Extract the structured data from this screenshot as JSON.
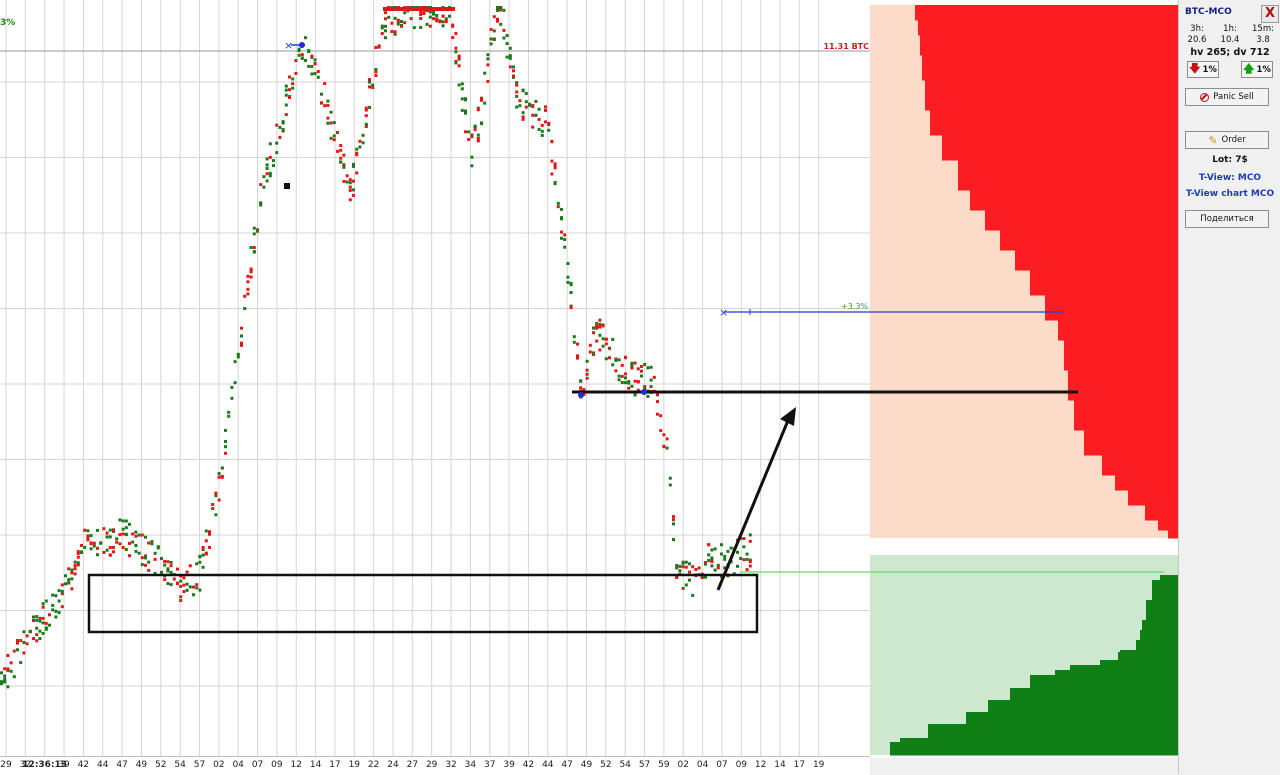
{
  "chart": {
    "corner_label": "3%",
    "price_line_label": "11.31 BTC",
    "target_label": "+3.3%",
    "colors": {
      "buy": "#1a7a1a",
      "sell": "#e01818",
      "grid": "#d6d6d6",
      "target_line": "#1f3fd0",
      "support_line": "#5ee05e",
      "marker": "#2a2ad0"
    },
    "time_ticks": [
      "29",
      "32",
      "12:36:13",
      "39",
      "42",
      "44",
      "47",
      "49",
      "52",
      "54",
      "57",
      "02",
      "04",
      "07",
      "09",
      "12",
      "14",
      "17",
      "19",
      "22",
      "24",
      "27",
      "29",
      "32",
      "34",
      "37",
      "39",
      "42",
      "44",
      "47",
      "49",
      "52",
      "54",
      "57",
      "59",
      "02",
      "04",
      "07",
      "09",
      "12",
      "14",
      "17",
      "19"
    ]
  },
  "order_book": {
    "colors": {
      "asks_dark": "#fc1d22",
      "asks_light": "#fcdcc8",
      "bids_dark": "#0f7f16",
      "bids_light": "#cde8cf"
    }
  },
  "panel": {
    "pair": "BTC-MCO",
    "close_label": "X",
    "volumes": [
      {
        "period": "3h:",
        "value": "20.6"
      },
      {
        "period": "1h:",
        "value": "10.4"
      },
      {
        "period": "15m:",
        "value": "3.8"
      }
    ],
    "hv_dv": "hv 265; dv 712",
    "down_button": "1%",
    "up_button": "1%",
    "panic_sell": "Panic Sell",
    "order": "Order",
    "lot": "Lot: 7$",
    "tview": "T-View: MCO",
    "tview_chart": "T-View chart MCO",
    "share": "Поделиться"
  }
}
